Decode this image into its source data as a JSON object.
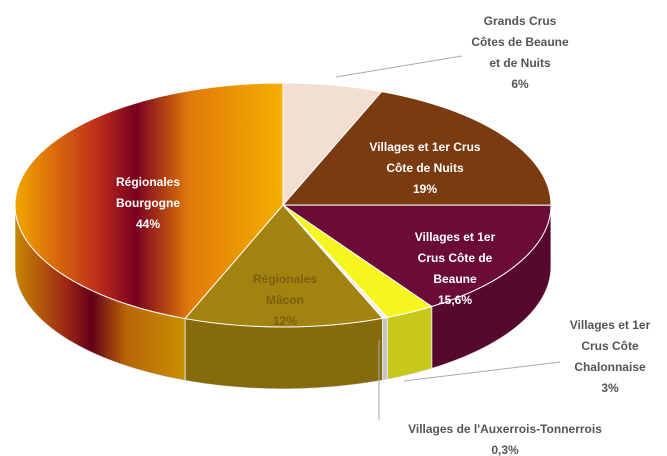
{
  "chart_data": {
    "type": "pie3d",
    "categories": [
      "Grands Crus\nCôtes de Beaune\net de Nuits",
      "Villages et 1er Crus\nCôte de Nuits",
      "Villages et 1er\nCrus Côte de\nBeaune",
      "Villages et 1er\nCrus Côte\nChalonnaise",
      "Villages de l'Auxerrois-Tonnerrois",
      "Régionales\nMâcon",
      "Régionales\nBourgogne"
    ],
    "values": [
      6,
      19,
      15.6,
      3,
      0.3,
      12,
      44
    ],
    "value_labels": [
      "6%",
      "19%",
      "15,6%",
      "3%",
      "0,3%",
      "12%",
      "44%"
    ],
    "colors": [
      "#f3ded2",
      "#7b3b10",
      "#6b0b38",
      "#f5f520",
      "#eeeeee",
      "#a3830f",
      "#f2a600"
    ]
  }
}
